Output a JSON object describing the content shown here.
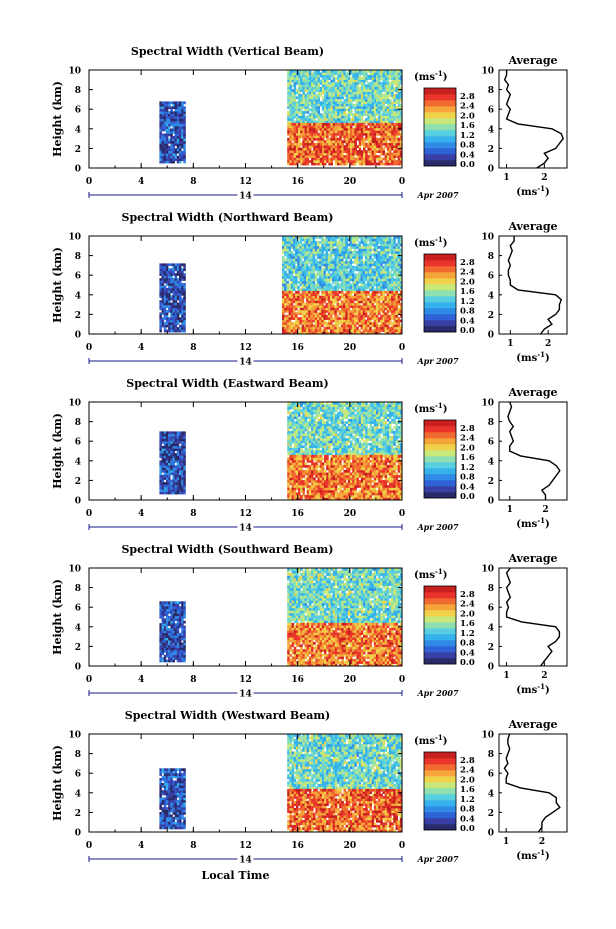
{
  "figure": {
    "x_axis_title": "Local Time"
  },
  "colors": {
    "colormap": [
      "#2a2a6a",
      "#3a3fa6",
      "#2f62d6",
      "#2f8be6",
      "#35b2ec",
      "#58cfe0",
      "#8fe0b0",
      "#c8e87a",
      "#f0d24a",
      "#f5a43a",
      "#f06a30",
      "#e8342a",
      "#c81f1f"
    ],
    "plot_bg": "#ffffff"
  },
  "chart_data": [
    {
      "type": "heatmap",
      "title": "Spectral Width (Vertical Beam)",
      "ylabel": "Height (km)",
      "ylim": [
        0,
        10
      ],
      "yticks": [
        "0",
        "2",
        "4",
        "6",
        "8",
        "10"
      ],
      "xlim": [
        0,
        24
      ],
      "xticks": [
        "0",
        "4",
        "8",
        "12",
        "16",
        "20",
        "0"
      ],
      "date_marker": "14",
      "date_label": "Apr 2007",
      "colorbar": {
        "unit": "(ms",
        "unit_exp": "-1",
        "unit_close": ")",
        "ticks": [
          "2.8",
          "2.4",
          "2.0",
          "1.6",
          "1.2",
          "0.8",
          "0.4",
          "0.0"
        ],
        "range": [
          0,
          2.8
        ]
      },
      "data_blocks": [
        {
          "t": [
            5.4,
            7.4
          ],
          "h": [
            0.5,
            6.8
          ],
          "value": 0.45
        },
        {
          "t": [
            15.2,
            24
          ],
          "h": [
            4.6,
            10
          ],
          "value": 1.3
        },
        {
          "t": [
            15.2,
            24
          ],
          "h": [
            0.3,
            4.6
          ],
          "value": 2.3
        }
      ],
      "profile": {
        "title": "Average",
        "xlabel": "(ms",
        "xlabel_exp": "-1",
        "xlabel_close": ")",
        "xticks": [
          "1",
          "2"
        ],
        "xlim": [
          0.8,
          2.6
        ],
        "xtick_values": [
          1,
          2
        ],
        "height": [
          0,
          0.5,
          1.0,
          1.5,
          2.0,
          2.5,
          3.0,
          3.5,
          4.0,
          4.5,
          5.0,
          5.5,
          6.0,
          6.5,
          7.0,
          7.5,
          8.0,
          8.5,
          9.0,
          9.5,
          10.0
        ],
        "width": [
          1.8,
          2.0,
          2.1,
          2.0,
          2.3,
          2.4,
          2.5,
          2.45,
          2.2,
          1.3,
          1.0,
          1.05,
          1.1,
          1.0,
          1.05,
          1.1,
          1.0,
          1.05,
          0.95,
          1.0,
          1.0
        ]
      }
    },
    {
      "type": "heatmap",
      "title": "Spectral Width (Northward Beam)",
      "ylabel": "Height (km)",
      "ylim": [
        0,
        10
      ],
      "yticks": [
        "0",
        "2",
        "4",
        "6",
        "8",
        "10"
      ],
      "xlim": [
        0,
        24
      ],
      "xticks": [
        "0",
        "4",
        "8",
        "12",
        "16",
        "20",
        "0"
      ],
      "date_marker": "14",
      "date_label": "Apr 2007",
      "colorbar": {
        "unit": "(ms",
        "unit_exp": "-1",
        "unit_close": ")",
        "ticks": [
          "2.8",
          "2.4",
          "2.0",
          "1.6",
          "1.2",
          "0.8",
          "0.4",
          "0.0"
        ],
        "range": [
          0,
          2.8
        ]
      },
      "data_blocks": [
        {
          "t": [
            5.4,
            7.4
          ],
          "h": [
            0.2,
            7.2
          ],
          "value": 0.4
        },
        {
          "t": [
            14.8,
            24
          ],
          "h": [
            4.4,
            10
          ],
          "value": 1.2
        },
        {
          "t": [
            14.8,
            24
          ],
          "h": [
            0,
            4.4
          ],
          "value": 2.2
        }
      ],
      "profile": {
        "title": "Average",
        "xlabel": "(ms",
        "xlabel_exp": "-1",
        "xlabel_close": ")",
        "xticks": [
          "1",
          "2"
        ],
        "xlim": [
          0.7,
          2.5
        ],
        "xtick_values": [
          1,
          2
        ],
        "height": [
          0,
          0.5,
          1.0,
          1.5,
          2.0,
          2.5,
          3.0,
          3.5,
          4.0,
          4.5,
          5.0,
          5.5,
          6.0,
          6.5,
          7.0,
          7.5,
          8.0,
          8.5,
          9.0,
          9.5,
          10.0
        ],
        "width": [
          1.8,
          1.9,
          2.1,
          2.0,
          2.2,
          2.3,
          2.3,
          2.35,
          2.2,
          1.2,
          1.0,
          1.0,
          0.95,
          0.95,
          1.0,
          0.95,
          1.0,
          1.05,
          1.0,
          1.1,
          1.1
        ]
      }
    },
    {
      "type": "heatmap",
      "title": "Spectral Width (Eastward Beam)",
      "ylabel": "Height (km)",
      "ylim": [
        0,
        10
      ],
      "yticks": [
        "0",
        "2",
        "4",
        "6",
        "8",
        "10"
      ],
      "xlim": [
        0,
        24
      ],
      "xticks": [
        "0",
        "4",
        "8",
        "12",
        "16",
        "20",
        "0"
      ],
      "date_marker": "14",
      "date_label": "Apr 2007",
      "colorbar": {
        "unit": "(ms",
        "unit_exp": "-1",
        "unit_close": ")",
        "ticks": [
          "2.8",
          "2.4",
          "2.0",
          "1.6",
          "1.2",
          "0.8",
          "0.4",
          "0.0"
        ],
        "range": [
          0,
          2.8
        ]
      },
      "data_blocks": [
        {
          "t": [
            5.4,
            7.4
          ],
          "h": [
            0.6,
            7.0
          ],
          "value": 0.45
        },
        {
          "t": [
            15.2,
            24
          ],
          "h": [
            4.6,
            10
          ],
          "value": 1.3
        },
        {
          "t": [
            15.2,
            24
          ],
          "h": [
            0,
            4.6
          ],
          "value": 2.2
        }
      ],
      "profile": {
        "title": "Average",
        "xlabel": "(ms",
        "xlabel_exp": "-1",
        "xlabel_close": ")",
        "xticks": [
          "1",
          "2"
        ],
        "xlim": [
          0.7,
          2.6
        ],
        "xtick_values": [
          1,
          2
        ],
        "height": [
          0,
          0.5,
          1.0,
          1.5,
          2.0,
          2.5,
          3.0,
          3.5,
          4.0,
          4.5,
          5.0,
          5.5,
          6.0,
          6.5,
          7.0,
          7.5,
          8.0,
          8.5,
          9.0,
          9.5,
          10.0
        ],
        "width": [
          2.0,
          2.0,
          1.9,
          2.1,
          2.2,
          2.3,
          2.4,
          2.3,
          2.1,
          1.3,
          1.0,
          1.0,
          1.1,
          1.05,
          1.0,
          1.1,
          1.0,
          0.95,
          1.0,
          1.05,
          1.0
        ]
      }
    },
    {
      "type": "heatmap",
      "title": "Spectral Width (Southward Beam)",
      "ylabel": "Height (km)",
      "ylim": [
        0,
        10
      ],
      "yticks": [
        "0",
        "2",
        "4",
        "6",
        "8",
        "10"
      ],
      "xlim": [
        0,
        24
      ],
      "xticks": [
        "0",
        "4",
        "8",
        "12",
        "16",
        "20",
        "0"
      ],
      "date_marker": "14",
      "date_label": "Apr 2007",
      "colorbar": {
        "unit": "(ms",
        "unit_exp": "-1",
        "unit_close": ")",
        "ticks": [
          "2.8",
          "2.4",
          "2.0",
          "1.6",
          "1.2",
          "0.8",
          "0.4",
          "0.0"
        ],
        "range": [
          0,
          2.8
        ]
      },
      "data_blocks": [
        {
          "t": [
            5.4,
            7.4
          ],
          "h": [
            0.4,
            6.6
          ],
          "value": 0.45
        },
        {
          "t": [
            15.2,
            24
          ],
          "h": [
            4.4,
            10
          ],
          "value": 1.3
        },
        {
          "t": [
            15.2,
            24
          ],
          "h": [
            0,
            4.4
          ],
          "value": 2.2
        }
      ],
      "profile": {
        "title": "Average",
        "xlabel": "(ms",
        "xlabel_exp": "-1",
        "xlabel_close": ")",
        "xticks": [
          "1",
          "2"
        ],
        "xlim": [
          0.8,
          2.6
        ],
        "xtick_values": [
          1,
          2
        ],
        "height": [
          0,
          0.5,
          1.0,
          1.5,
          2.0,
          2.5,
          3.0,
          3.5,
          4.0,
          4.5,
          5.0,
          5.5,
          6.0,
          6.5,
          7.0,
          7.5,
          8.0,
          8.5,
          9.0,
          9.5,
          10.0
        ],
        "width": [
          1.9,
          2.0,
          2.1,
          2.2,
          2.1,
          2.3,
          2.4,
          2.4,
          2.3,
          1.4,
          1.0,
          1.0,
          1.05,
          1.0,
          1.1,
          1.05,
          1.0,
          1.1,
          1.05,
          1.0,
          1.1
        ]
      }
    },
    {
      "type": "heatmap",
      "title": "Spectral Width (Westward Beam)",
      "ylabel": "Height (km)",
      "ylim": [
        0,
        10
      ],
      "yticks": [
        "0",
        "2",
        "4",
        "6",
        "8",
        "10"
      ],
      "xlim": [
        0,
        24
      ],
      "xticks": [
        "0",
        "4",
        "8",
        "12",
        "16",
        "20",
        "0"
      ],
      "date_marker": "14",
      "date_label": "Apr 2007",
      "colorbar": {
        "unit": "(ms",
        "unit_exp": "-1",
        "unit_close": ")",
        "ticks": [
          "2.8",
          "2.4",
          "2.0",
          "1.6",
          "1.2",
          "0.8",
          "0.4",
          "0.0"
        ],
        "range": [
          0,
          2.8
        ]
      },
      "data_blocks": [
        {
          "t": [
            5.4,
            7.4
          ],
          "h": [
            0.3,
            6.5
          ],
          "value": 0.45
        },
        {
          "t": [
            15.2,
            24
          ],
          "h": [
            4.4,
            10
          ],
          "value": 1.3
        },
        {
          "t": [
            15.2,
            24
          ],
          "h": [
            0,
            4.4
          ],
          "value": 2.3
        }
      ],
      "profile": {
        "title": "Average",
        "xlabel": "(ms",
        "xlabel_exp": "-1",
        "xlabel_close": ")",
        "xticks": [
          "1",
          "2"
        ],
        "xlim": [
          0.8,
          2.7
        ],
        "xtick_values": [
          1,
          2
        ],
        "height": [
          0,
          0.5,
          1.0,
          1.5,
          2.0,
          2.5,
          3.0,
          3.5,
          4.0,
          4.5,
          5.0,
          5.5,
          6.0,
          6.5,
          7.0,
          7.5,
          8.0,
          8.5,
          9.0,
          9.5,
          10.0
        ],
        "width": [
          1.9,
          2.0,
          2.0,
          2.1,
          2.3,
          2.5,
          2.4,
          2.4,
          2.2,
          1.4,
          1.0,
          1.0,
          1.05,
          0.95,
          1.05,
          1.0,
          1.05,
          1.1,
          1.05,
          1.05,
          1.1
        ]
      }
    }
  ]
}
